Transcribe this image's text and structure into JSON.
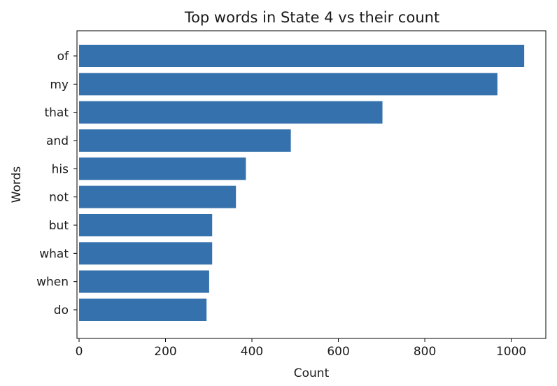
{
  "chart_data": {
    "type": "bar",
    "orientation": "horizontal",
    "title": "Top words in State 4 vs their count",
    "xlabel": "Count",
    "ylabel": "Words",
    "categories": [
      "of",
      "my",
      "that",
      "and",
      "his",
      "not",
      "but",
      "what",
      "when",
      "do"
    ],
    "values": [
      1030,
      968,
      702,
      490,
      386,
      363,
      308,
      308,
      301,
      295
    ],
    "xlim": [
      0,
      1080
    ],
    "xticks": [
      0,
      200,
      400,
      600,
      800,
      1000
    ],
    "grid": false,
    "bar_color": "#3572ad"
  }
}
